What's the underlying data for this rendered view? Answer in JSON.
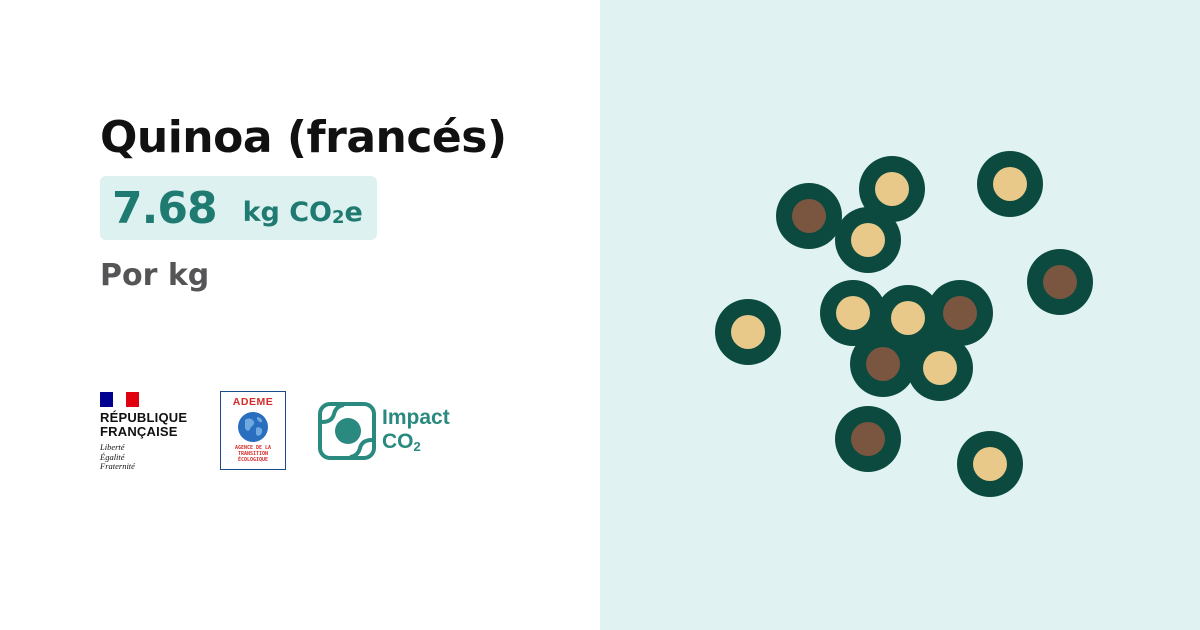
{
  "product": {
    "title": "Quinoa (francés)",
    "value": "7.68",
    "unit_prefix": "kg CO",
    "unit_sub": "2",
    "unit_suffix": "e",
    "per": "Por kg"
  },
  "logos": {
    "republique": {
      "line1": "RÉPUBLIQUE",
      "line2": "FRANÇAISE",
      "motto1": "Liberté",
      "motto2": "Égalité",
      "motto3": "Fraternité",
      "flag_colors": [
        "#000091",
        "#ffffff",
        "#e1000f"
      ]
    },
    "ademe": {
      "name": "ADEME",
      "sub1": "AGENCE DE LA",
      "sub2": "TRANSITION",
      "sub3": "ÉCOLOGIQUE"
    },
    "impact": {
      "line1": "Impact",
      "line2_prefix": "CO",
      "line2_sub": "2"
    }
  },
  "colors": {
    "accent": "#1f7a72",
    "value_bg": "#dcf1f0",
    "right_panel_bg": "#e0f3f2",
    "seed_ring": "#0c4a40",
    "seed_light": "#e8c98a",
    "seed_dark": "#7a5540"
  },
  "illustration": {
    "icon": "quinoa-seeds-illustration",
    "seeds": [
      {
        "tone": "dark"
      },
      {
        "tone": "light"
      },
      {
        "tone": "light"
      },
      {
        "tone": "light"
      },
      {
        "tone": "dark"
      },
      {
        "tone": "light"
      },
      {
        "tone": "light"
      },
      {
        "tone": "light"
      },
      {
        "tone": "dark"
      },
      {
        "tone": "dark"
      },
      {
        "tone": "light"
      },
      {
        "tone": "dark"
      },
      {
        "tone": "light"
      }
    ]
  }
}
